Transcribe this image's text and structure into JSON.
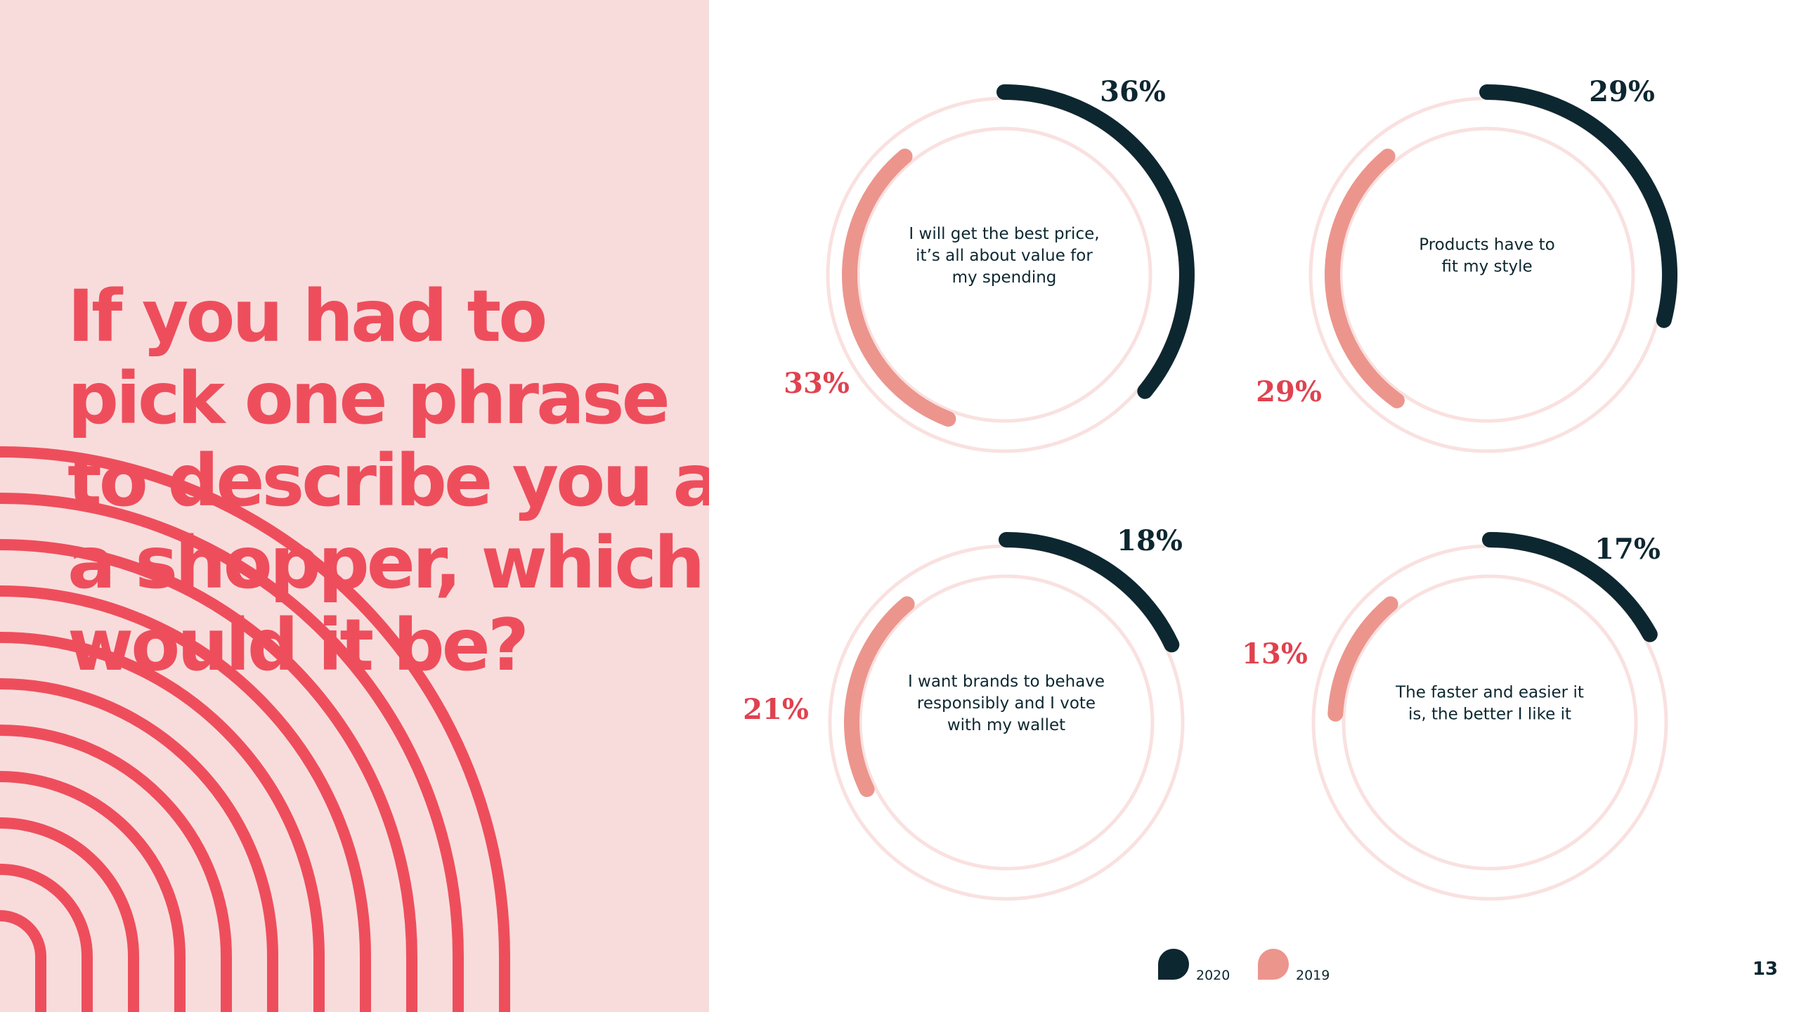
{
  "headline": {
    "lines": [
      "If you had to",
      "pick one phrase",
      "to describe you as",
      "a shopper, which",
      "would it be?"
    ]
  },
  "colors": {
    "panel_bg": "#f8dcdc",
    "headline": "#ee4e5c",
    "series_2020": "#0d2731",
    "series_2019": "#ec958d",
    "track": "#f9e1e0",
    "label_2019": "#e0424f"
  },
  "chart_data": [
    {
      "type": "radial-bar",
      "center_text": [
        "I will get the best price,",
        "it’s all about value for",
        "my spending"
      ],
      "series": [
        {
          "name": "2020",
          "value": 36,
          "label": "36%"
        },
        {
          "name": "2019",
          "value": 33,
          "label": "33%"
        }
      ]
    },
    {
      "type": "radial-bar",
      "center_text": [
        "Products have to",
        "fit my style"
      ],
      "series": [
        {
          "name": "2020",
          "value": 29,
          "label": "29%"
        },
        {
          "name": "2019",
          "value": 29,
          "label": "29%"
        }
      ]
    },
    {
      "type": "radial-bar",
      "center_text": [
        "I want brands to behave",
        "responsibly and I vote",
        "with my wallet"
      ],
      "series": [
        {
          "name": "2020",
          "value": 18,
          "label": "18%"
        },
        {
          "name": "2019",
          "value": 21,
          "label": "21%"
        }
      ]
    },
    {
      "type": "radial-bar",
      "center_text": [
        "The faster and easier it",
        "is, the better I like it"
      ],
      "series": [
        {
          "name": "2020",
          "value": 17,
          "label": "17%"
        },
        {
          "name": "2019",
          "value": 13,
          "label": "13%"
        }
      ]
    }
  ],
  "legend": {
    "items": [
      {
        "label": "2020",
        "color": "#0d2731"
      },
      {
        "label": "2019",
        "color": "#ec958d"
      }
    ]
  },
  "page_number": "13"
}
